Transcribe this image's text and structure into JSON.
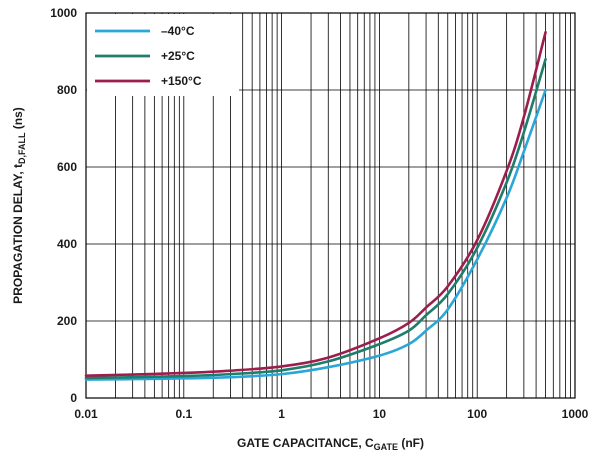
{
  "chart_data": {
    "type": "line",
    "xlabel": "GATE CAPACITANCE, C",
    "xlabel_sub": "GATE",
    "xlabel_suffix": " (nF)",
    "ylabel": "PROPAGATION DELAY, t",
    "ylabel_sub": "D,FALL",
    "ylabel_suffix": " (ns)",
    "xscale": "log",
    "xlim": [
      0.01,
      1000
    ],
    "ylim": [
      0,
      1000
    ],
    "x_ticks": [
      0.01,
      0.1,
      1,
      10,
      100,
      1000
    ],
    "x_tick_labels": [
      "0.01",
      "0.1",
      "1",
      "10",
      "100",
      "1000"
    ],
    "y_ticks": [
      0,
      200,
      400,
      600,
      800,
      1000
    ],
    "y_tick_labels": [
      "0",
      "200",
      "400",
      "600",
      "800",
      "1000"
    ],
    "grid": true,
    "legend_position": "top-left",
    "series": [
      {
        "name": "–40°C",
        "color": "#2aa6d9",
        "x": [
          0.01,
          0.03,
          0.1,
          0.3,
          1,
          3,
          10,
          20,
          30,
          50,
          100,
          200,
          300,
          500
        ],
        "y": [
          48,
          49,
          51,
          54,
          62,
          80,
          110,
          140,
          175,
          230,
          360,
          520,
          640,
          800
        ]
      },
      {
        "name": "+25°C",
        "color": "#1e7d6b",
        "x": [
          0.01,
          0.03,
          0.1,
          0.3,
          1,
          3,
          10,
          20,
          30,
          50,
          100,
          200,
          300,
          500
        ],
        "y": [
          52,
          54,
          57,
          62,
          72,
          95,
          140,
          175,
          215,
          270,
          390,
          560,
          690,
          880
        ]
      },
      {
        "name": "+150°C",
        "color": "#9b1e4d",
        "x": [
          0.01,
          0.03,
          0.1,
          0.3,
          1,
          3,
          10,
          20,
          30,
          50,
          100,
          200,
          300,
          500
        ],
        "y": [
          58,
          61,
          65,
          71,
          82,
          105,
          155,
          195,
          235,
          290,
          410,
          590,
          730,
          950
        ]
      }
    ]
  }
}
